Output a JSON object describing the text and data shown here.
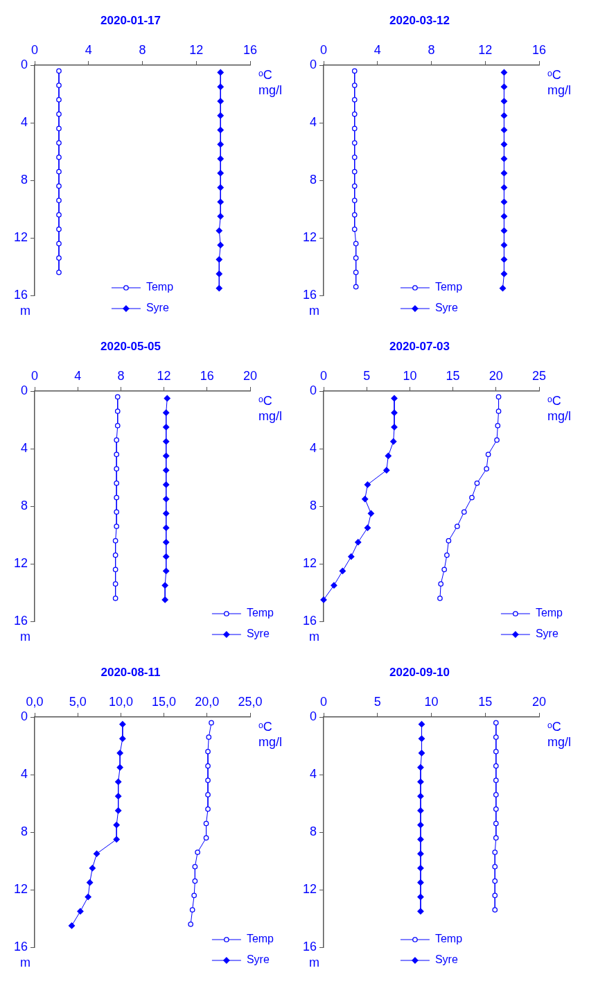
{
  "chart_data": [
    {
      "type": "line",
      "orientation": "horizontal",
      "title": "2020-01-17",
      "xlabel": "ᵒC\nmg/l",
      "ylabel": "m",
      "xlim": [
        0,
        16
      ],
      "xticks": [
        0,
        4,
        8,
        12,
        16
      ],
      "ylim": [
        16,
        0
      ],
      "yticks": [
        0,
        4,
        8,
        12,
        16
      ],
      "legend": "bottom",
      "series": [
        {
          "name": "Temp",
          "color": "#0000ff",
          "marker": "circle",
          "values": [
            1.8,
            1.8,
            1.8,
            1.8,
            1.8,
            1.8,
            1.8,
            1.8,
            1.8,
            1.8,
            1.8,
            1.8,
            1.8,
            1.8,
            1.8
          ],
          "x": [
            0.4,
            1.4,
            2.4,
            3.4,
            4.4,
            5.4,
            6.4,
            7.4,
            8.4,
            9.4,
            10.4,
            11.4,
            12.4,
            13.4,
            14.4
          ]
        },
        {
          "name": "Syre",
          "color": "#0000ff",
          "marker": "diamond",
          "values": [
            13.8,
            13.8,
            13.8,
            13.8,
            13.8,
            13.8,
            13.8,
            13.8,
            13.8,
            13.8,
            13.8,
            13.7,
            13.8,
            13.7,
            13.7,
            13.7
          ],
          "x": [
            0.5,
            1.5,
            2.5,
            3.5,
            4.5,
            5.5,
            6.5,
            7.5,
            8.5,
            9.5,
            10.5,
            11.5,
            12.5,
            13.5,
            14.5,
            15.5
          ]
        }
      ]
    },
    {
      "type": "line",
      "orientation": "horizontal",
      "title": "2020-03-12",
      "xlabel": "ᵒC\nmg/l",
      "ylabel": "m",
      "xlim": [
        0,
        16
      ],
      "xticks": [
        0,
        4,
        8,
        12,
        16
      ],
      "ylim": [
        16,
        0
      ],
      "yticks": [
        0,
        4,
        8,
        12,
        16
      ],
      "legend": "bottom",
      "series": [
        {
          "name": "Temp",
          "color": "#0000ff",
          "marker": "circle",
          "values": [
            2.3,
            2.3,
            2.3,
            2.3,
            2.3,
            2.3,
            2.3,
            2.3,
            2.3,
            2.3,
            2.3,
            2.3,
            2.4,
            2.4,
            2.4,
            2.4
          ],
          "x": [
            0.4,
            1.4,
            2.4,
            3.4,
            4.4,
            5.4,
            6.4,
            7.4,
            8.4,
            9.4,
            10.4,
            11.4,
            12.4,
            13.4,
            14.4,
            15.4
          ]
        },
        {
          "name": "Syre",
          "color": "#0000ff",
          "marker": "diamond",
          "values": [
            13.4,
            13.4,
            13.4,
            13.4,
            13.4,
            13.4,
            13.4,
            13.4,
            13.4,
            13.4,
            13.4,
            13.4,
            13.4,
            13.4,
            13.4,
            13.3
          ],
          "x": [
            0.5,
            1.5,
            2.5,
            3.5,
            4.5,
            5.5,
            6.5,
            7.5,
            8.5,
            9.5,
            10.5,
            11.5,
            12.5,
            13.5,
            14.5,
            15.5
          ]
        }
      ]
    },
    {
      "type": "line",
      "orientation": "horizontal",
      "title": "2020-05-05",
      "xlabel": "ᵒC\nmg/l",
      "ylabel": "m",
      "xlim": [
        0,
        20
      ],
      "xticks": [
        0,
        4,
        8,
        12,
        16,
        20
      ],
      "ylim": [
        16,
        0
      ],
      "yticks": [
        0,
        4,
        8,
        12,
        16
      ],
      "legend": "bottom right",
      "series": [
        {
          "name": "Temp",
          "color": "#0000ff",
          "marker": "circle",
          "values": [
            7.7,
            7.7,
            7.7,
            7.6,
            7.6,
            7.6,
            7.6,
            7.6,
            7.6,
            7.6,
            7.5,
            7.5,
            7.5,
            7.5,
            7.5
          ],
          "x": [
            0.4,
            1.4,
            2.4,
            3.4,
            4.4,
            5.4,
            6.4,
            7.4,
            8.4,
            9.4,
            10.4,
            11.4,
            12.4,
            13.4,
            14.4
          ]
        },
        {
          "name": "Syre",
          "color": "#0000ff",
          "marker": "diamond",
          "values": [
            12.3,
            12.2,
            12.2,
            12.2,
            12.2,
            12.2,
            12.2,
            12.2,
            12.2,
            12.2,
            12.2,
            12.2,
            12.2,
            12.1,
            12.1
          ],
          "x": [
            0.5,
            1.5,
            2.5,
            3.5,
            4.5,
            5.5,
            6.5,
            7.5,
            8.5,
            9.5,
            10.5,
            11.5,
            12.5,
            13.5,
            14.5
          ]
        }
      ]
    },
    {
      "type": "line",
      "orientation": "horizontal",
      "title": "2020-07-03",
      "xlabel": "ᵒC\nmg/l",
      "ylabel": "m",
      "xlim": [
        0,
        25
      ],
      "xticks": [
        0,
        5,
        10,
        15,
        20,
        25
      ],
      "ylim": [
        16,
        0
      ],
      "yticks": [
        0,
        4,
        8,
        12,
        16
      ],
      "legend": "bottom right",
      "series": [
        {
          "name": "Temp",
          "color": "#0000ff",
          "marker": "circle",
          "values": [
            20.3,
            20.3,
            20.2,
            20.1,
            19.1,
            18.9,
            17.8,
            17.2,
            16.3,
            15.5,
            14.5,
            14.3,
            14.0,
            13.6,
            13.5
          ],
          "x": [
            0.4,
            1.4,
            2.4,
            3.4,
            4.4,
            5.4,
            6.4,
            7.4,
            8.4,
            9.4,
            10.4,
            11.4,
            12.4,
            13.4,
            14.4
          ]
        },
        {
          "name": "Syre",
          "color": "#0000ff",
          "marker": "diamond",
          "values": [
            8.2,
            8.2,
            8.2,
            8.1,
            7.5,
            7.3,
            5.1,
            4.8,
            5.5,
            5.1,
            4.0,
            3.2,
            2.2,
            1.2,
            0.0
          ],
          "x": [
            0.5,
            1.5,
            2.5,
            3.5,
            4.5,
            5.5,
            6.5,
            7.5,
            8.5,
            9.5,
            10.5,
            11.5,
            12.5,
            13.5,
            14.5
          ]
        }
      ]
    },
    {
      "type": "line",
      "orientation": "horizontal",
      "title": "2020-08-11",
      "xlabel": "ᵒC\nmg/l",
      "ylabel": "m",
      "xlim": [
        0,
        25
      ],
      "xticks": [
        {
          "value": 0,
          "label": "0,0"
        },
        {
          "value": 5,
          "label": "5,0"
        },
        {
          "value": 10,
          "label": "10,0"
        },
        {
          "value": 15,
          "label": "15,0"
        },
        {
          "value": 20,
          "label": "20,0"
        },
        {
          "value": 25,
          "label": "25,0"
        }
      ],
      "ylim": [
        16,
        0
      ],
      "yticks": [
        0,
        4,
        8,
        12,
        16
      ],
      "legend": "bottom right",
      "series": [
        {
          "name": "Temp",
          "color": "#0000ff",
          "marker": "circle",
          "values": [
            20.5,
            20.2,
            20.1,
            20.1,
            20.1,
            20.1,
            20.1,
            19.9,
            19.9,
            18.9,
            18.6,
            18.6,
            18.5,
            18.3,
            18.1
          ],
          "x": [
            0.4,
            1.4,
            2.4,
            3.4,
            4.4,
            5.4,
            6.4,
            7.4,
            8.4,
            9.4,
            10.4,
            11.4,
            12.4,
            13.4,
            14.4
          ]
        },
        {
          "name": "Syre",
          "color": "#0000ff",
          "marker": "diamond",
          "values": [
            10.2,
            10.2,
            9.9,
            9.9,
            9.7,
            9.7,
            9.7,
            9.5,
            9.5,
            7.2,
            6.7,
            6.4,
            6.2,
            5.3,
            4.3
          ],
          "x": [
            0.5,
            1.5,
            2.5,
            3.5,
            4.5,
            5.5,
            6.5,
            7.5,
            8.5,
            9.5,
            10.5,
            11.5,
            12.5,
            13.5,
            14.5
          ]
        }
      ]
    },
    {
      "type": "line",
      "orientation": "horizontal",
      "title": "2020-09-10",
      "xlabel": "ᵒC\nmg/l",
      "ylabel": "m",
      "xlim": [
        0,
        20
      ],
      "xticks": [
        0,
        5,
        10,
        15,
        20
      ],
      "ylim": [
        16,
        0
      ],
      "yticks": [
        0,
        4,
        8,
        12,
        16
      ],
      "legend": "bottom",
      "series": [
        {
          "name": "Temp",
          "color": "#0000ff",
          "marker": "circle",
          "values": [
            16.0,
            16.0,
            16.0,
            16.0,
            16.0,
            16.0,
            16.0,
            16.0,
            16.0,
            15.9,
            15.9,
            15.9,
            15.9,
            15.9
          ],
          "x": [
            0.4,
            1.4,
            2.4,
            3.4,
            4.4,
            5.4,
            6.4,
            7.4,
            8.4,
            9.4,
            10.4,
            11.4,
            12.4,
            13.4
          ]
        },
        {
          "name": "Syre",
          "color": "#0000ff",
          "marker": "diamond",
          "values": [
            9.1,
            9.1,
            9.1,
            9.0,
            9.0,
            9.0,
            9.0,
            9.0,
            9.0,
            9.0,
            9.0,
            9.0,
            9.0,
            9.0
          ],
          "x": [
            0.5,
            1.5,
            2.5,
            3.5,
            4.5,
            5.5,
            6.5,
            7.5,
            8.5,
            9.5,
            10.5,
            11.5,
            12.5,
            13.5
          ]
        }
      ]
    }
  ]
}
